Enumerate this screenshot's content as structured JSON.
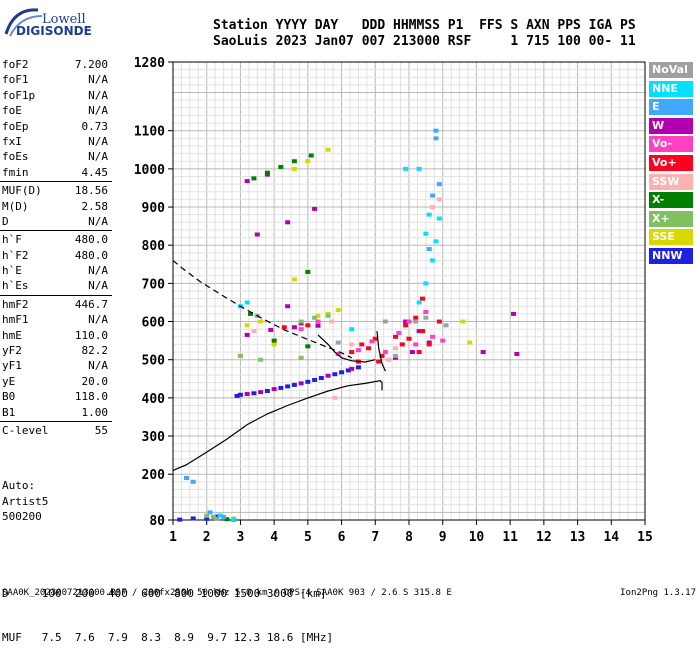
{
  "logo": {
    "line1": "Lowell",
    "line2": "DIGISONDE"
  },
  "header": {
    "labels": "Station YYYY DAY   DDD HHMMSS P1  FFS S AXN PPS IGA PS",
    "values": "SaoLuis 2023 Jan07 007 213000 RSF     1 715 100 00- 11"
  },
  "params_group1": [
    {
      "name": "foF2",
      "value": "7.200"
    },
    {
      "name": "foF1",
      "value": "N/A"
    },
    {
      "name": "foF1p",
      "value": "N/A"
    },
    {
      "name": "foE",
      "value": "N/A"
    },
    {
      "name": "foEp",
      "value": "0.73"
    },
    {
      "name": "fxI",
      "value": "N/A"
    },
    {
      "name": "foEs",
      "value": "N/A"
    },
    {
      "name": "fmin",
      "value": "4.45"
    }
  ],
  "params_group2": [
    {
      "name": "MUF(D)",
      "value": "18.56"
    },
    {
      "name": "M(D)",
      "value": "2.58"
    },
    {
      "name": "D",
      "value": "N/A"
    }
  ],
  "params_group3": [
    {
      "name": "h`F",
      "value": "480.0"
    },
    {
      "name": "h`F2",
      "value": "480.0"
    },
    {
      "name": "h`E",
      "value": "N/A"
    },
    {
      "name": "h`Es",
      "value": "N/A"
    }
  ],
  "params_group4": [
    {
      "name": "hmF2",
      "value": "446.7"
    },
    {
      "name": "hmF1",
      "value": "N/A"
    },
    {
      "name": "hmE",
      "value": "110.0"
    },
    {
      "name": "yF2",
      "value": "82.2"
    },
    {
      "name": "yF1",
      "value": "N/A"
    },
    {
      "name": "yE",
      "value": "20.0"
    },
    {
      "name": "B0",
      "value": "118.0"
    },
    {
      "name": "B1",
      "value": "1.00"
    }
  ],
  "params_group5": [
    {
      "name": "C-level",
      "value": "55"
    }
  ],
  "auto": {
    "line1": "Auto:",
    "line2": "Artist5",
    "line3": "500200"
  },
  "legend": [
    {
      "label": "NoVal",
      "color": "#a0a0a0"
    },
    {
      "label": "NNE",
      "color": "#00e0ff"
    },
    {
      "label": "E",
      "color": "#40a8ff"
    },
    {
      "label": "W",
      "color": "#b000b0"
    },
    {
      "label": "Vo-",
      "color": "#ff40c0"
    },
    {
      "label": "Vo+",
      "color": "#ff0020"
    },
    {
      "label": "SSW",
      "color": "#ffb0b0"
    },
    {
      "label": "X-",
      "color": "#008000"
    },
    {
      "label": "X+",
      "color": "#80c060"
    },
    {
      "label": "SSE",
      "color": "#d8d800"
    },
    {
      "label": "NNW",
      "color": "#2020e0"
    }
  ],
  "footer": {
    "d_row": "D     100  200  400  600  800 1000 1500 3000 [km]",
    "muf_row": "MUF   7.5  7.6  7.9  8.3  8.9  9.7 12.3 18.6 [MHz]",
    "file_line": "SAA0K_2023007213000.RSF / 280fx256h 50 kHz 5.0 km / DPS-4 SAA0K 903 / 2.6 S 315.8 E",
    "version": "Ion2Png 1.3.17"
  },
  "chart_data": {
    "type": "scatter",
    "title": "",
    "xlabel": "",
    "ylabel": "",
    "xlim": [
      1,
      15
    ],
    "ylim": [
      80,
      1280
    ],
    "x_ticks": [
      1,
      2,
      3,
      4,
      5,
      6,
      7,
      8,
      9,
      10,
      11,
      12,
      13,
      14,
      15
    ],
    "y_ticks": [
      80,
      200,
      300,
      400,
      500,
      600,
      700,
      800,
      900,
      1000,
      1100,
      1280
    ],
    "grid": true,
    "series": [
      {
        "name": "NNW",
        "color": "#2020e0",
        "points": [
          [
            3.0,
            408
          ],
          [
            3.4,
            412
          ],
          [
            3.8,
            418
          ],
          [
            4.2,
            426
          ],
          [
            4.6,
            434
          ],
          [
            5.0,
            442
          ],
          [
            5.4,
            452
          ],
          [
            5.8,
            462
          ],
          [
            6.2,
            472
          ],
          [
            6.5,
            480
          ],
          [
            2.9,
            405
          ],
          [
            4.4,
            430
          ],
          [
            5.2,
            447
          ],
          [
            6.0,
            467
          ],
          [
            1.2,
            81
          ],
          [
            1.6,
            84
          ],
          [
            2.0,
            83
          ],
          [
            2.3,
            89
          ],
          [
            2.8,
            81
          ]
        ]
      },
      {
        "name": "W",
        "color": "#b000b0",
        "points": [
          [
            3.2,
            410
          ],
          [
            3.6,
            415
          ],
          [
            4.0,
            423
          ],
          [
            4.8,
            438
          ],
          [
            5.6,
            458
          ],
          [
            6.3,
            476
          ],
          [
            3.2,
            565
          ],
          [
            3.9,
            578
          ],
          [
            4.6,
            585
          ],
          [
            5.3,
            589
          ],
          [
            4.4,
            640
          ],
          [
            4.8,
            595
          ],
          [
            3.5,
            828
          ],
          [
            4.4,
            860
          ],
          [
            5.2,
            895
          ],
          [
            3.2,
            968
          ],
          [
            3.8,
            985
          ],
          [
            7.6,
            505
          ],
          [
            8.1,
            520
          ],
          [
            8.6,
            545
          ],
          [
            10.2,
            520
          ],
          [
            11.1,
            620
          ],
          [
            11.2,
            515
          ],
          [
            7.9,
            600
          ],
          [
            8.3,
            575
          ]
        ]
      },
      {
        "name": "Vo+",
        "color": "#ff0020",
        "points": [
          [
            6.3,
            520
          ],
          [
            6.6,
            540
          ],
          [
            6.8,
            530
          ],
          [
            7.0,
            555
          ],
          [
            7.2,
            510
          ],
          [
            7.6,
            560
          ],
          [
            7.9,
            590
          ],
          [
            8.2,
            610
          ],
          [
            8.4,
            575
          ],
          [
            8.6,
            540
          ],
          [
            7.8,
            540
          ],
          [
            8.4,
            660
          ],
          [
            6.5,
            495
          ],
          [
            7.1,
            495
          ],
          [
            8.0,
            555
          ],
          [
            8.3,
            520
          ],
          [
            8.9,
            600
          ],
          [
            5.0,
            590
          ],
          [
            4.3,
            585
          ]
        ]
      },
      {
        "name": "Vo-",
        "color": "#ff40c0",
        "points": [
          [
            6.5,
            525
          ],
          [
            6.9,
            548
          ],
          [
            7.7,
            570
          ],
          [
            8.0,
            600
          ],
          [
            8.5,
            625
          ],
          [
            7.3,
            520
          ],
          [
            8.2,
            540
          ],
          [
            5.3,
            600
          ],
          [
            4.8,
            580
          ],
          [
            8.7,
            560
          ],
          [
            9.0,
            550
          ],
          [
            5.9,
            515
          ]
        ]
      },
      {
        "name": "SSE",
        "color": "#d8d800",
        "points": [
          [
            5.6,
            620
          ],
          [
            5.9,
            630
          ],
          [
            5.3,
            615
          ],
          [
            4.6,
            1000
          ],
          [
            5.0,
            1020
          ],
          [
            5.6,
            1050
          ],
          [
            3.2,
            590
          ],
          [
            3.6,
            600
          ],
          [
            4.0,
            540
          ],
          [
            9.6,
            600
          ],
          [
            9.8,
            545
          ],
          [
            4.6,
            710
          ],
          [
            2.8,
            84
          ]
        ]
      },
      {
        "name": "X-",
        "color": "#008000",
        "points": [
          [
            3.4,
            975
          ],
          [
            3.8,
            990
          ],
          [
            4.2,
            1005
          ],
          [
            4.6,
            1020
          ],
          [
            5.1,
            1035
          ],
          [
            5.0,
            730
          ],
          [
            5.0,
            535
          ],
          [
            4.0,
            550
          ],
          [
            3.3,
            620
          ],
          [
            2.6,
            82
          ]
        ]
      },
      {
        "name": "X+",
        "color": "#80c060",
        "points": [
          [
            4.8,
            600
          ],
          [
            5.2,
            610
          ],
          [
            5.6,
            615
          ],
          [
            3.0,
            510
          ],
          [
            3.6,
            500
          ],
          [
            4.8,
            505
          ],
          [
            2.2,
            88
          ],
          [
            2.0,
            91
          ]
        ]
      },
      {
        "name": "NNE",
        "color": "#00e0ff",
        "points": [
          [
            8.3,
            650
          ],
          [
            8.5,
            700
          ],
          [
            8.7,
            760
          ],
          [
            8.8,
            810
          ],
          [
            8.9,
            870
          ],
          [
            8.5,
            830
          ],
          [
            8.6,
            880
          ],
          [
            7.9,
            1000
          ],
          [
            8.3,
            1000
          ],
          [
            3.0,
            640
          ],
          [
            3.2,
            650
          ],
          [
            6.3,
            580
          ],
          [
            2.4,
            92
          ],
          [
            2.8,
            82
          ]
        ]
      },
      {
        "name": "E",
        "color": "#40a8ff",
        "points": [
          [
            8.7,
            930
          ],
          [
            8.9,
            960
          ],
          [
            8.8,
            1080
          ],
          [
            8.8,
            1100
          ],
          [
            8.6,
            790
          ],
          [
            2.1,
            100
          ],
          [
            2.5,
            88
          ],
          [
            1.6,
            180
          ],
          [
            1.4,
            190
          ]
        ]
      },
      {
        "name": "SSW",
        "color": "#ffb0b0",
        "points": [
          [
            8.7,
            900
          ],
          [
            8.9,
            920
          ],
          [
            7.6,
            530
          ],
          [
            7.4,
            500
          ],
          [
            5.7,
            600
          ],
          [
            3.4,
            575
          ],
          [
            5.8,
            400
          ],
          [
            6.3,
            540
          ]
        ]
      },
      {
        "name": "NoVal",
        "color": "#a0a0a0",
        "points": [
          [
            7.3,
            600
          ],
          [
            7.6,
            510
          ],
          [
            8.2,
            600
          ],
          [
            5.9,
            545
          ],
          [
            3.5,
            615
          ],
          [
            9.1,
            590
          ],
          [
            2.3,
            83
          ],
          [
            8.5,
            610
          ]
        ]
      }
    ],
    "lines": [
      {
        "style": "solid",
        "points": [
          [
            1.0,
            210
          ],
          [
            1.4,
            225
          ],
          [
            2.0,
            258
          ],
          [
            2.6,
            292
          ],
          [
            3.2,
            330
          ],
          [
            3.8,
            358
          ],
          [
            4.4,
            380
          ],
          [
            5.0,
            400
          ],
          [
            5.6,
            418
          ],
          [
            6.2,
            432
          ],
          [
            6.7,
            438
          ],
          [
            7.15,
            445
          ],
          [
            7.2,
            440
          ],
          [
            7.2,
            420
          ]
        ]
      },
      {
        "style": "dashed",
        "points": [
          [
            1.0,
            760
          ],
          [
            1.3,
            738
          ],
          [
            1.8,
            705
          ],
          [
            2.4,
            672
          ],
          [
            3.0,
            640
          ],
          [
            3.6,
            610
          ],
          [
            4.3,
            578
          ],
          [
            5.0,
            553
          ],
          [
            5.6,
            532
          ],
          [
            6.0,
            518
          ],
          [
            6.3,
            505
          ]
        ]
      },
      {
        "style": "solid",
        "points": [
          [
            5.3,
            565
          ],
          [
            5.6,
            540
          ],
          [
            5.8,
            520
          ],
          [
            6.0,
            505
          ],
          [
            6.3,
            497
          ],
          [
            6.7,
            494
          ],
          [
            7.0,
            500
          ]
        ]
      },
      {
        "style": "solid",
        "points": [
          [
            7.05,
            575
          ],
          [
            7.1,
            530
          ],
          [
            7.2,
            490
          ],
          [
            7.3,
            470
          ]
        ]
      }
    ]
  }
}
